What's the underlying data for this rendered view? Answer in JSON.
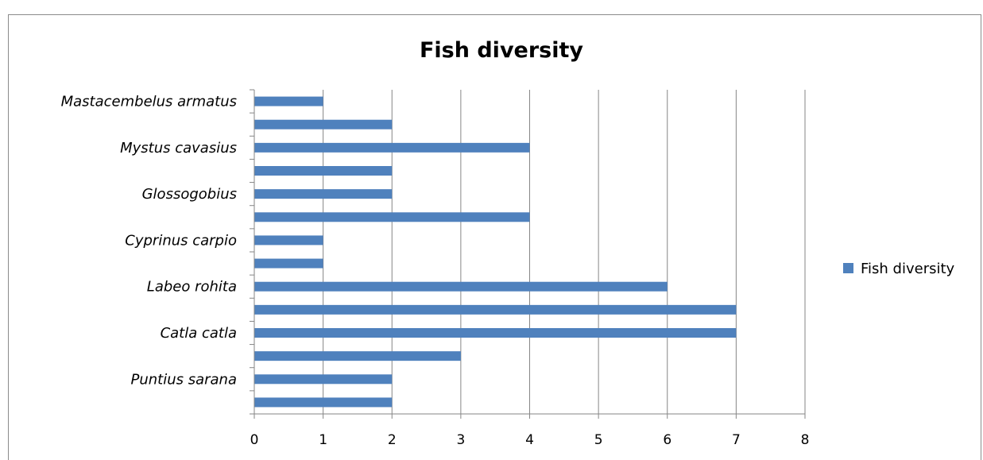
{
  "chart_data": {
    "type": "bar",
    "orientation": "horizontal",
    "title": "Fish diversity",
    "xlabel": "",
    "ylabel": "",
    "categories": [
      "",
      "Puntius sarana",
      "",
      "Catla catla",
      "",
      "Labeo rohita",
      "",
      "Cyprinus carpio",
      "",
      "Glossogobius",
      "",
      "Mystus cavasius",
      "",
      "Mastacembelus armatus"
    ],
    "series": [
      {
        "name": "Fish diversity",
        "values": [
          2,
          2,
          3,
          7,
          7,
          6,
          1,
          1,
          4,
          2,
          2,
          4,
          2,
          1
        ]
      }
    ],
    "xlim": [
      0,
      8
    ],
    "xticks": [
      "0",
      "1",
      "2",
      "3",
      "4",
      "5",
      "6",
      "7",
      "8"
    ],
    "grid": "vertical-major",
    "legend": "right",
    "colors": {
      "bar": "#4f81bd",
      "grid": "#868686"
    }
  }
}
